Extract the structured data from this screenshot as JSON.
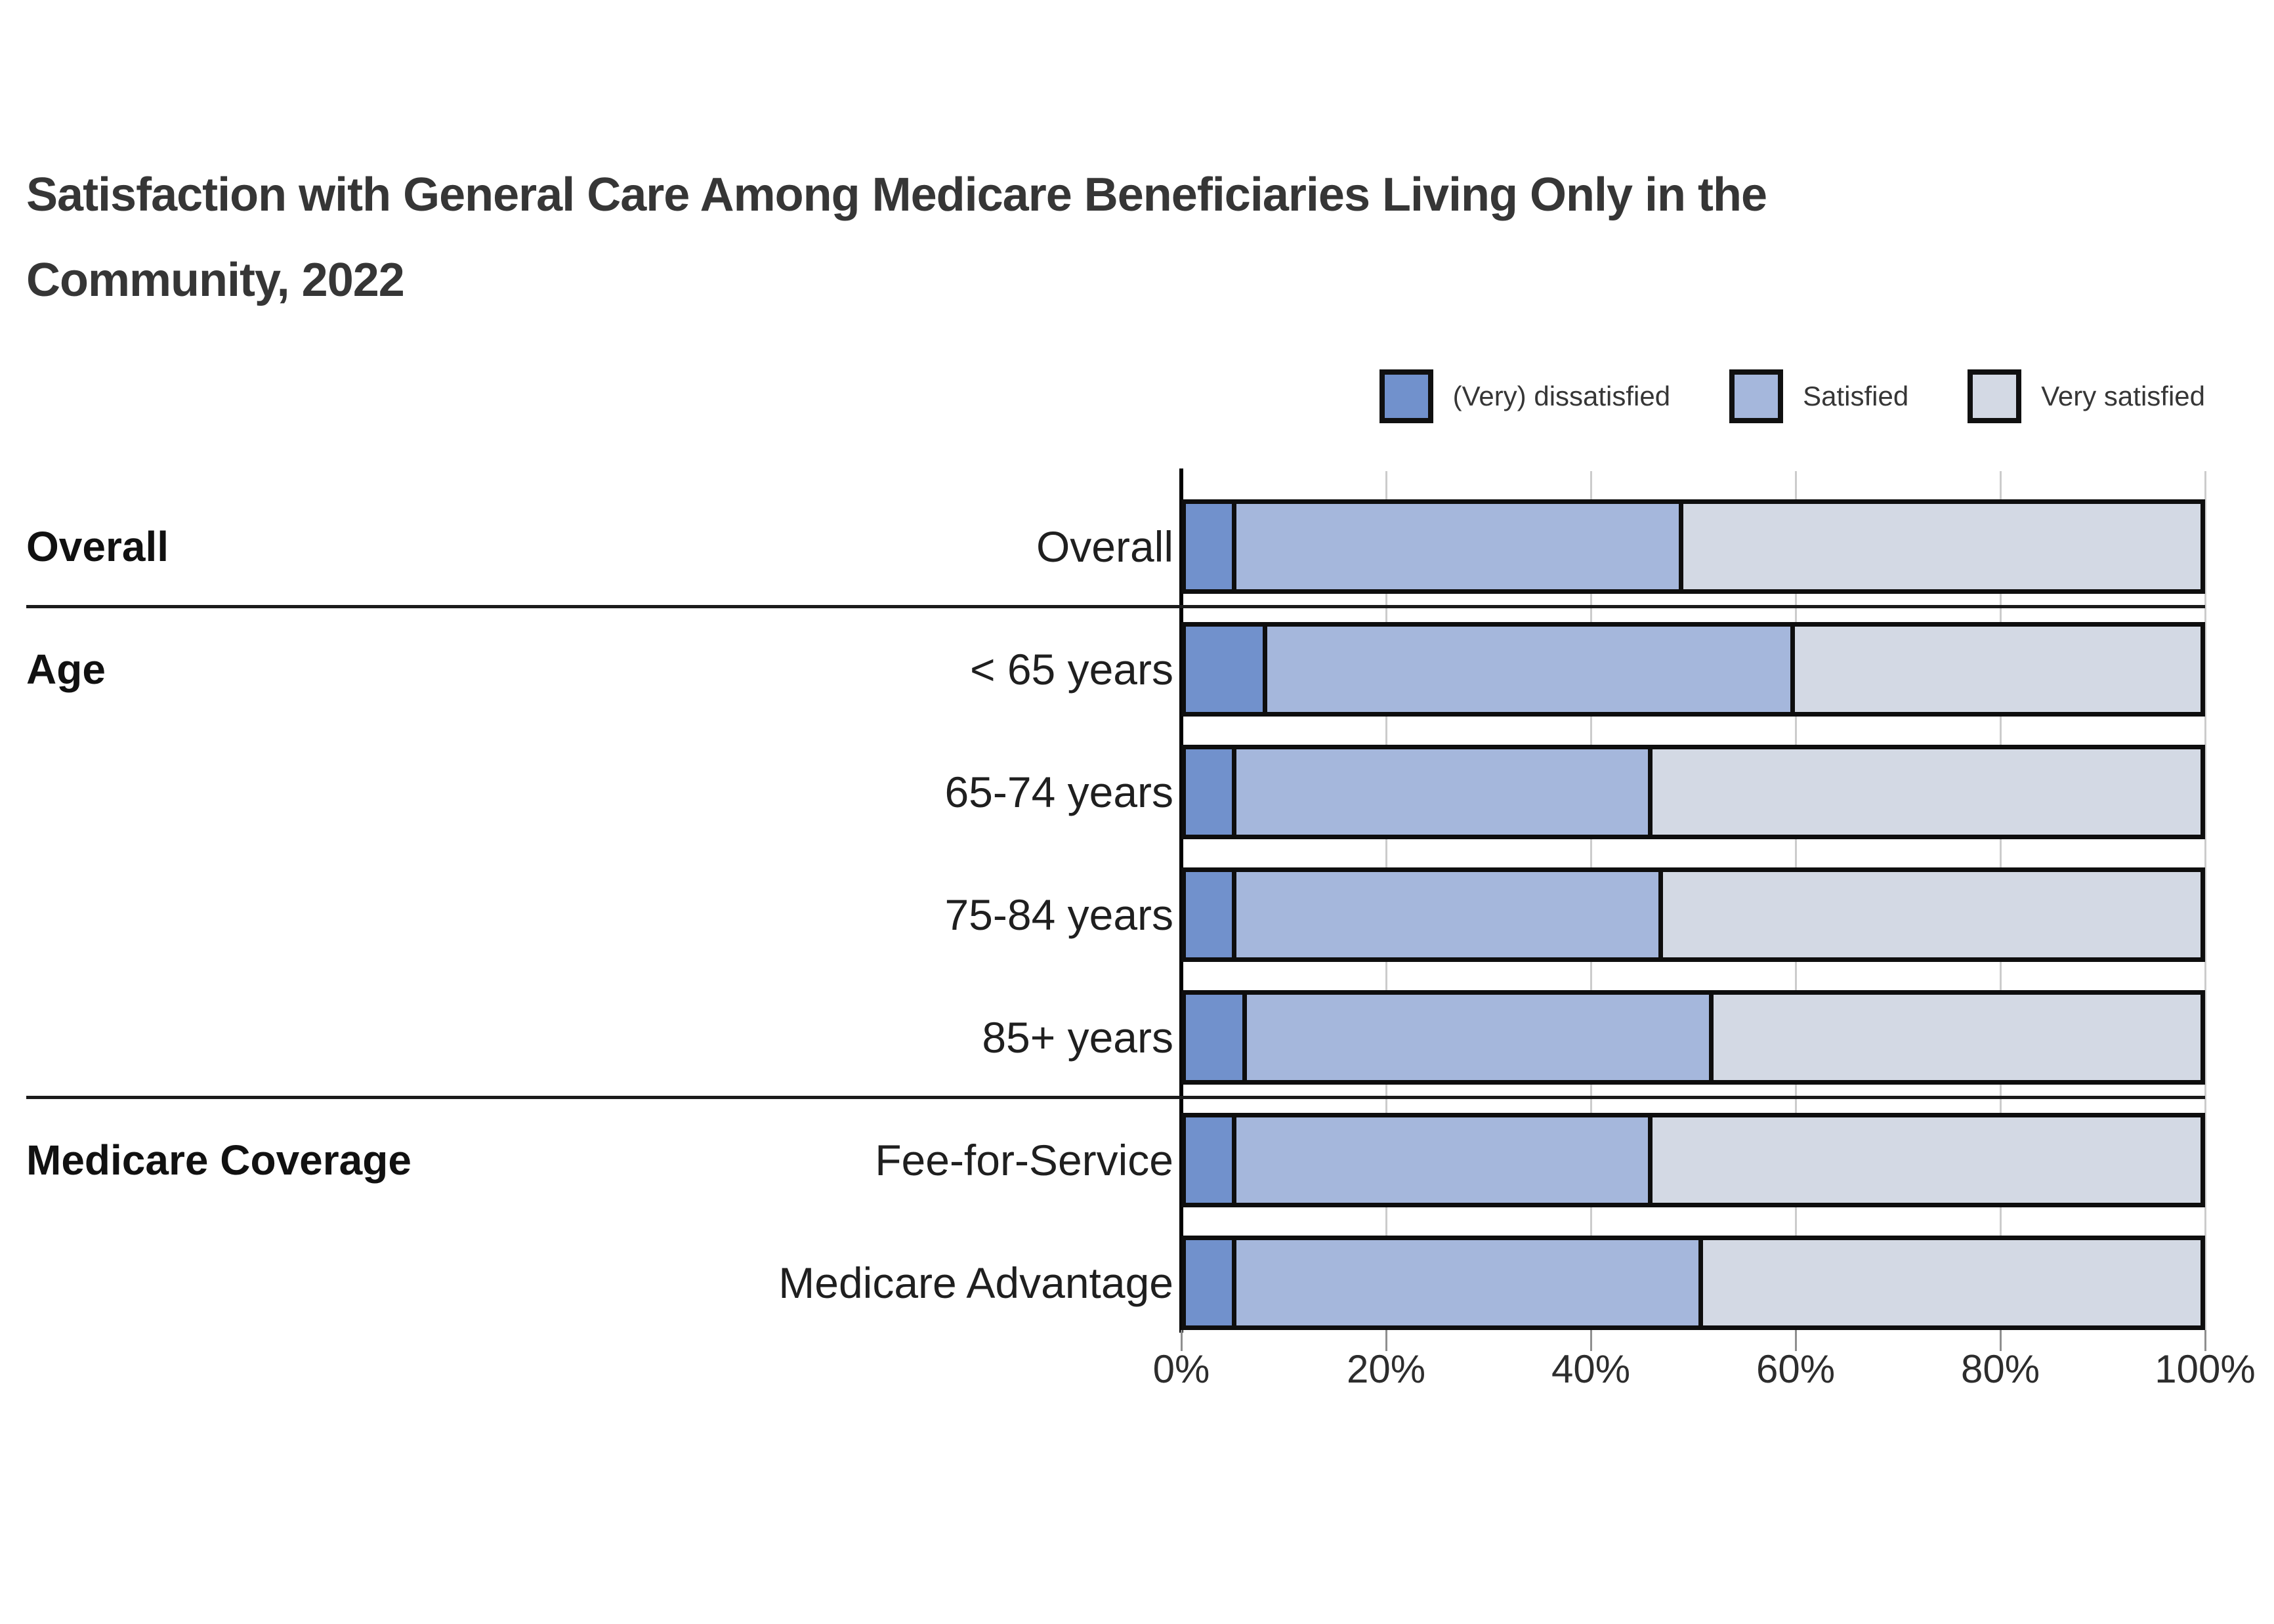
{
  "title_lines": [
    "Satisfaction with General Care Among Medicare Beneficiaries Living Only in the",
    "Community, 2022"
  ],
  "legend": [
    {
      "label": "(Very) dissatisfied",
      "color": "#7191cc"
    },
    {
      "label": "Satisfied",
      "color": "#a5b7dc"
    },
    {
      "label": "Very satisfied",
      "color": "#d3d9e4"
    }
  ],
  "colors": {
    "bar_border": "#0e0e0e",
    "gridline": "#cccccc",
    "axis_line": "#000000",
    "tick_mark": "#8f8f8f",
    "separator": "#1b1b1b",
    "title_text": "#363636",
    "label_text": "#1f1f1f"
  },
  "x_axis": {
    "tick_labels": [
      "0%",
      "20%",
      "40%",
      "60%",
      "80%",
      "100%"
    ],
    "tick_values": [
      0,
      20,
      40,
      60,
      80,
      100
    ]
  },
  "chart_data": {
    "type": "bar",
    "orientation": "horizontal",
    "stacked": true,
    "unit": "percent",
    "title": "Satisfaction with General Care Among Medicare Beneficiaries Living Only in the Community, 2022",
    "series_names": [
      "(Very) dissatisfied",
      "Satisfied",
      "Very satisfied"
    ],
    "x_range": [
      0,
      100
    ],
    "grid": true,
    "legend_position": "top-right",
    "groups": [
      {
        "group_label": "Overall",
        "rows": [
          {
            "label": "Overall",
            "values": [
              5,
              44,
              51
            ]
          }
        ]
      },
      {
        "group_label": "Age",
        "rows": [
          {
            "label": "< 65 years",
            "values": [
              8,
              52,
              40
            ]
          },
          {
            "label": "65-74 years",
            "values": [
              5,
              41,
              54
            ]
          },
          {
            "label": "75-84 years",
            "values": [
              5,
              42,
              53
            ]
          },
          {
            "label": "85+ years",
            "values": [
              6,
              46,
              48
            ]
          }
        ]
      },
      {
        "group_label": "Medicare Coverage",
        "rows": [
          {
            "label": "Fee-for-Service",
            "values": [
              5,
              41,
              54
            ]
          },
          {
            "label": "Medicare Advantage",
            "values": [
              5,
              46,
              49
            ]
          }
        ]
      }
    ]
  }
}
